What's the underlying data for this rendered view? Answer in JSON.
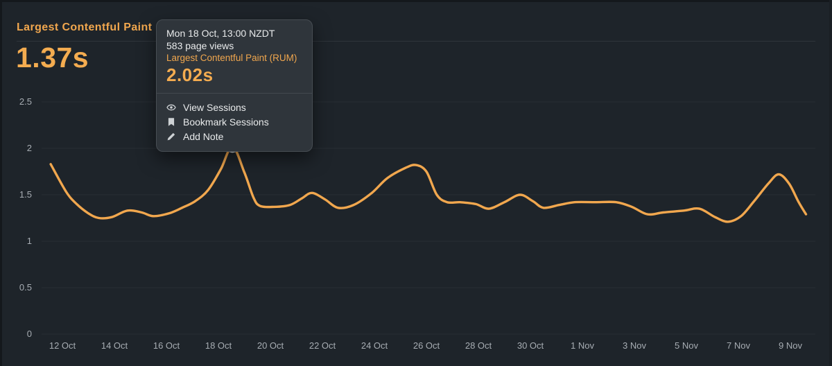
{
  "header": {
    "title": "Largest Contentful Paint",
    "value": "1.37s"
  },
  "tooltip": {
    "datetime": "Mon 18 Oct, 13:00 NZDT",
    "pageviews": "583 page views",
    "metric_label": "Largest Contentful Paint (RUM)",
    "value": "2.02s",
    "menu": [
      {
        "icon": "eye-icon",
        "label": "View Sessions"
      },
      {
        "icon": "bookmark-icon",
        "label": "Bookmark Sessions"
      },
      {
        "icon": "pencil-icon",
        "label": "Add Note"
      }
    ]
  },
  "colors": {
    "accent_orange": "#F1A74E",
    "value_orange": "#F4AC50",
    "background": "#1E242A",
    "tooltip_background": "#2F353B",
    "gridline": "#282E34",
    "axis_text": "#A7ADB3",
    "tooltip_text": "#E9EBEC",
    "marker_ring": "#ECECEC"
  },
  "chart_data": {
    "type": "line",
    "title": "Largest Contentful Paint",
    "unit": "seconds",
    "ylim": [
      0,
      2.87
    ],
    "grid": "horizontal",
    "legend": "none",
    "y_ticks": [
      {
        "v": 0,
        "label": "0"
      },
      {
        "v": 0.5,
        "label": "0.5"
      },
      {
        "v": 1,
        "label": "1"
      },
      {
        "v": 1.5,
        "label": "1.5"
      },
      {
        "v": 2,
        "label": "2"
      },
      {
        "v": 2.5,
        "label": "2.5"
      }
    ],
    "x_ticks": [
      {
        "t": 0,
        "label": "12 Oct"
      },
      {
        "t": 2,
        "label": "14 Oct"
      },
      {
        "t": 4,
        "label": "16 Oct"
      },
      {
        "t": 6,
        "label": "18 Oct"
      },
      {
        "t": 8,
        "label": "20 Oct"
      },
      {
        "t": 10,
        "label": "22 Oct"
      },
      {
        "t": 12,
        "label": "24 Oct"
      },
      {
        "t": 14,
        "label": "26 Oct"
      },
      {
        "t": 16,
        "label": "28 Oct"
      },
      {
        "t": 18,
        "label": "30 Oct"
      },
      {
        "t": 20,
        "label": "1 Nov"
      },
      {
        "t": 22,
        "label": "3 Nov"
      },
      {
        "t": 24,
        "label": "5 Nov"
      },
      {
        "t": 26,
        "label": "7 Nov"
      },
      {
        "t": 28,
        "label": "9 Nov"
      }
    ],
    "series": [
      {
        "name": "Largest Contentful Paint (RUM)",
        "color": "#F1A74E",
        "points": [
          [
            -0.45,
            1.83
          ],
          [
            0.15,
            1.53
          ],
          [
            0.55,
            1.4
          ],
          [
            1.0,
            1.3
          ],
          [
            1.4,
            1.25
          ],
          [
            1.9,
            1.26
          ],
          [
            2.5,
            1.33
          ],
          [
            3.05,
            1.31
          ],
          [
            3.5,
            1.27
          ],
          [
            4.1,
            1.3
          ],
          [
            4.6,
            1.36
          ],
          [
            5.1,
            1.43
          ],
          [
            5.6,
            1.55
          ],
          [
            6.1,
            1.78
          ],
          [
            6.54,
            2.02
          ],
          [
            7.0,
            1.74
          ],
          [
            7.35,
            1.47
          ],
          [
            7.6,
            1.38
          ],
          [
            8.15,
            1.37
          ],
          [
            8.75,
            1.39
          ],
          [
            9.2,
            1.46
          ],
          [
            9.6,
            1.52
          ],
          [
            10.1,
            1.45
          ],
          [
            10.6,
            1.36
          ],
          [
            11.2,
            1.39
          ],
          [
            11.9,
            1.52
          ],
          [
            12.5,
            1.68
          ],
          [
            13.2,
            1.79
          ],
          [
            13.6,
            1.82
          ],
          [
            14.0,
            1.75
          ],
          [
            14.4,
            1.5
          ],
          [
            14.8,
            1.42
          ],
          [
            15.3,
            1.42
          ],
          [
            15.9,
            1.4
          ],
          [
            16.4,
            1.35
          ],
          [
            17.0,
            1.42
          ],
          [
            17.6,
            1.5
          ],
          [
            18.1,
            1.43
          ],
          [
            18.5,
            1.36
          ],
          [
            19.1,
            1.39
          ],
          [
            19.7,
            1.42
          ],
          [
            20.5,
            1.42
          ],
          [
            21.3,
            1.42
          ],
          [
            21.9,
            1.37
          ],
          [
            22.5,
            1.29
          ],
          [
            23.1,
            1.31
          ],
          [
            23.9,
            1.33
          ],
          [
            24.5,
            1.35
          ],
          [
            25.1,
            1.26
          ],
          [
            25.6,
            1.21
          ],
          [
            26.1,
            1.27
          ],
          [
            26.6,
            1.43
          ],
          [
            27.15,
            1.62
          ],
          [
            27.55,
            1.72
          ],
          [
            27.95,
            1.62
          ],
          [
            28.3,
            1.43
          ],
          [
            28.6,
            1.29
          ]
        ]
      }
    ],
    "marker": {
      "t": 6.54,
      "v": 2.02,
      "series": "Largest Contentful Paint (RUM)"
    }
  }
}
